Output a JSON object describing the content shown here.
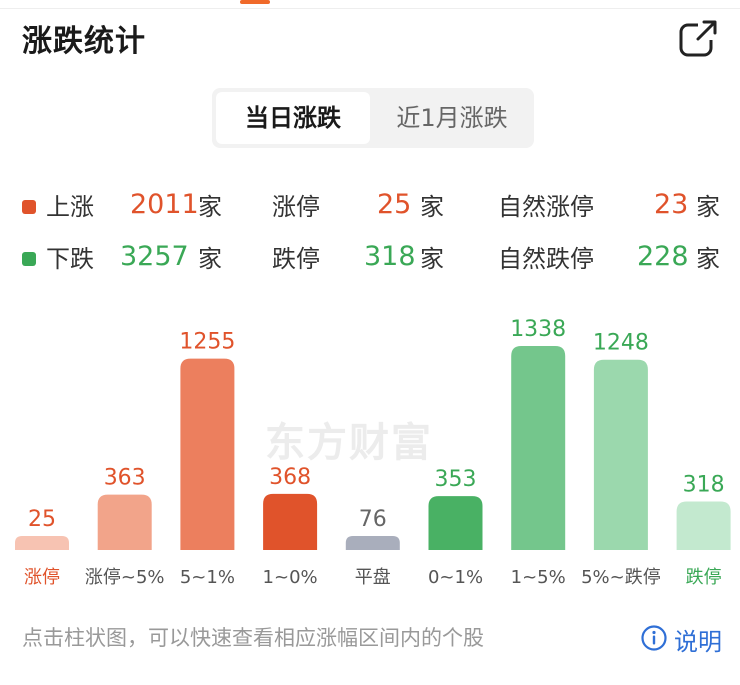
{
  "header": {
    "title": "涨跌统计",
    "share_icon": "external-share-icon"
  },
  "tabs": [
    {
      "label": "当日涨跌",
      "active": true
    },
    {
      "label": "近1月涨跌",
      "active": false
    }
  ],
  "summary": {
    "unit": "家",
    "up": {
      "label": "上涨",
      "value": "2011",
      "color": "#e0532b"
    },
    "limit_up": {
      "label": "涨停",
      "value": "25"
    },
    "natural_limit_up": {
      "label": "自然涨停",
      "value": "23"
    },
    "down": {
      "label": "下跌",
      "value": "3257",
      "color": "#3aa856"
    },
    "limit_down": {
      "label": "跌停",
      "value": "318"
    },
    "natural_limit_down": {
      "label": "自然跌停",
      "value": "228"
    }
  },
  "watermark": "东方财富",
  "chart_data": {
    "type": "bar",
    "categories": [
      "涨停",
      "涨停~5%",
      "5~1%",
      "1~0%",
      "平盘",
      "0~1%",
      "1~5%",
      "5%~跌停",
      "跌停"
    ],
    "values": [
      25,
      363,
      1255,
      368,
      76,
      353,
      1338,
      1248,
      318
    ],
    "colors": [
      "#f7c3b2",
      "#f2a48a",
      "#ec7f5e",
      "#e0532b",
      "#a9aebc",
      "#49b164",
      "#74c68c",
      "#9bd8ad",
      "#c3e9cf"
    ],
    "value_colors": [
      "#e0532b",
      "#e0532b",
      "#e0532b",
      "#e0532b",
      "#666666",
      "#3aa856",
      "#3aa856",
      "#3aa856",
      "#3aa856"
    ],
    "category_colors": [
      "#e0532b",
      "#555555",
      "#555555",
      "#555555",
      "#555555",
      "#555555",
      "#555555",
      "#555555",
      "#3aa856"
    ],
    "ylim": [
      0,
      1338
    ]
  },
  "footer": {
    "hint": "点击柱状图，可以快速查看相应涨幅区间内的个股",
    "help_label": "说明",
    "help_icon": "info-circle-icon"
  }
}
